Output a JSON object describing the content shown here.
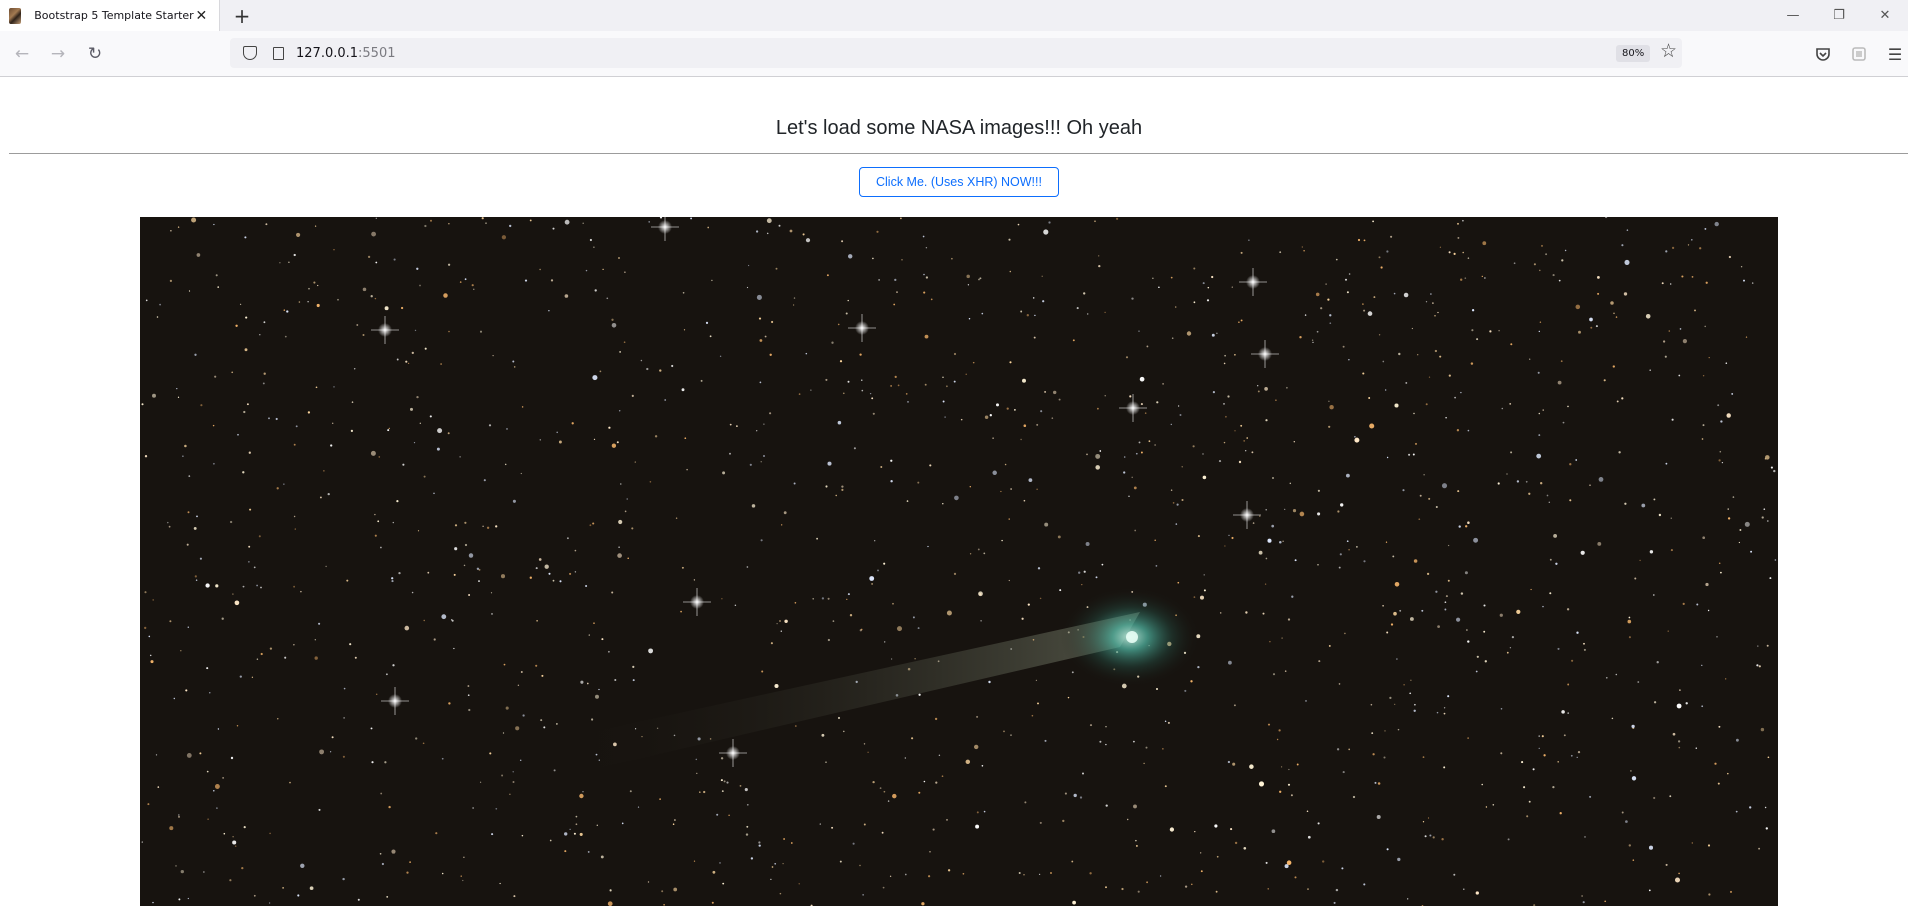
{
  "browser": {
    "tab_title": "Bootstrap 5 Template Starter",
    "tab_close_glyph": "✕",
    "new_tab_glyph": "+",
    "url_host": "127.0.0.1",
    "url_port": ":5501",
    "zoom_level": "80%",
    "window_controls": {
      "minimize": "—",
      "restore": "❐",
      "close": "✕"
    },
    "icons": [
      "back-arrow-icon",
      "forward-arrow-icon",
      "reload-icon",
      "shield-icon",
      "page-icon",
      "star-icon",
      "pocket-icon",
      "extension-icon",
      "hamburger-menu-icon"
    ]
  },
  "page": {
    "heading": "Let's load some NASA images!!! Oh yeah",
    "load_button_label": "Click Me. (Uses XHR) NOW!!!"
  },
  "colors": {
    "button_accent": "#0d6efd",
    "image_background": "#17130f",
    "comet_coma": "#4fb3a0"
  }
}
